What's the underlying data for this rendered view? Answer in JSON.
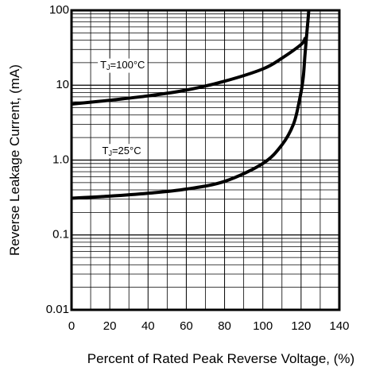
{
  "chart_data": {
    "type": "line",
    "title": "",
    "xlabel": "Percent of Rated Peak Reverse Voltage, (%)",
    "ylabel": "Reverse Leakage Current, (mA)",
    "xlim": [
      0,
      140
    ],
    "ylim": [
      0.01,
      100
    ],
    "yscale": "log",
    "grid": true,
    "x_ticks": [
      0,
      20,
      40,
      60,
      80,
      100,
      120,
      140
    ],
    "x_tick_labels": [
      "0",
      "20",
      "40",
      "60",
      "80",
      "100",
      "120",
      "140"
    ],
    "y_ticks": [
      0.01,
      0.1,
      1.0,
      10,
      100
    ],
    "y_tick_labels": [
      "0.01",
      "0.1",
      "1.0",
      "10",
      "100"
    ],
    "series": [
      {
        "label": "TJ=100°C",
        "label_main": "T",
        "label_sub": "J",
        "label_rest": "=100°C",
        "color": "#000000",
        "label_at": [
          15,
          18
        ],
        "x": [
          0,
          20,
          40,
          60,
          80,
          100,
          110,
          120,
          122
        ],
        "y": [
          5.6,
          6.3,
          7.2,
          8.6,
          11.3,
          16.5,
          23,
          35,
          42
        ]
      },
      {
        "label": "TJ=25°C",
        "label_main": "T",
        "label_sub": "J",
        "label_rest": "=25°C",
        "color": "#000000",
        "label_at": [
          16,
          1.3
        ],
        "x": [
          0,
          20,
          40,
          60,
          80,
          100,
          110,
          116,
          119,
          121,
          122,
          123,
          124,
          124.5
        ],
        "y": [
          0.31,
          0.33,
          0.36,
          0.41,
          0.52,
          0.9,
          1.6,
          3,
          6,
          12,
          25,
          50,
          100,
          200
        ]
      }
    ]
  }
}
